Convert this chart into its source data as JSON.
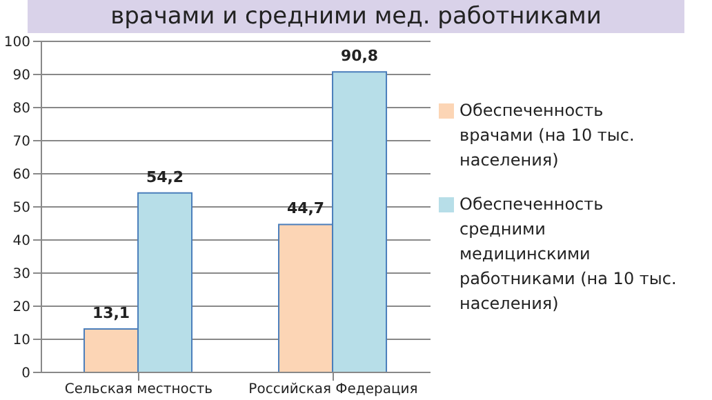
{
  "chart_data": {
    "type": "bar",
    "title": "врачами и средними мед. работниками",
    "categories": [
      "Сельская местность",
      "Российская Федерация"
    ],
    "series": [
      {
        "name": "Обеспеченность врачами (на 10 тыс. населения)",
        "color": "#fcd5b5",
        "values": [
          13.1,
          44.7
        ],
        "value_labels": [
          "13,1",
          "44,7"
        ]
      },
      {
        "name": "Обеспеченность средними медицинскими работниками (на 10 тыс. населения)",
        "color": "#b7dee8",
        "values": [
          54.2,
          90.8
        ],
        "value_labels": [
          "54,2",
          "90,8"
        ]
      }
    ],
    "ylim": [
      0,
      100
    ],
    "yticks": [
      0,
      10,
      20,
      30,
      40,
      50,
      60,
      70,
      80,
      90,
      100
    ],
    "grid": "y",
    "legend": "right"
  }
}
